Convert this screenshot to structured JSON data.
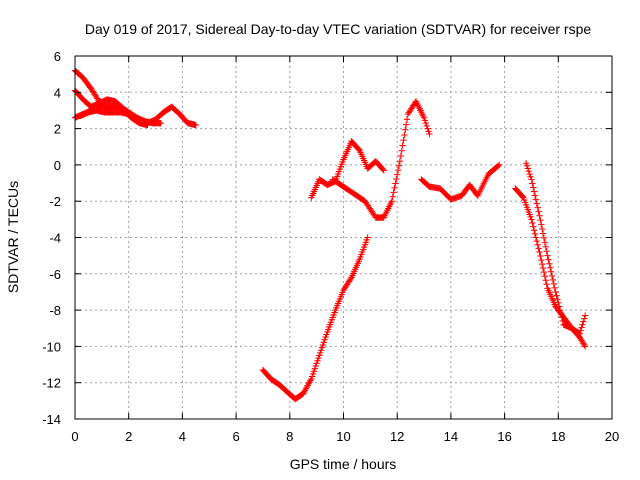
{
  "chart_data": {
    "type": "scatter",
    "title": "Day 019 of 2017, Sidereal Day-to-day VTEC variation (SDTVAR) for receiver rspe",
    "xlabel": "GPS time / hours",
    "ylabel": "SDTVAR / TECUs",
    "xlim": [
      0,
      20
    ],
    "ylim": [
      -14,
      6
    ],
    "xticks": [
      {
        "value": 0,
        "label": "0"
      },
      {
        "value": 2,
        "label": "2"
      },
      {
        "value": 4,
        "label": "4"
      },
      {
        "value": 6,
        "label": "6"
      },
      {
        "value": 8,
        "label": "8"
      },
      {
        "value": 10,
        "label": "10"
      },
      {
        "value": 12,
        "label": "12"
      },
      {
        "value": 14,
        "label": "14"
      },
      {
        "value": 16,
        "label": "16"
      },
      {
        "value": 18,
        "label": "18"
      },
      {
        "value": 20,
        "label": "20"
      }
    ],
    "yticks": [
      {
        "value": -14,
        "label": "-14"
      },
      {
        "value": -12,
        "label": "-12"
      },
      {
        "value": -10,
        "label": "-10"
      },
      {
        "value": -8,
        "label": "-8"
      },
      {
        "value": -6,
        "label": "-6"
      },
      {
        "value": -4,
        "label": "-4"
      },
      {
        "value": -2,
        "label": "-2"
      },
      {
        "value": 0,
        "label": "0"
      },
      {
        "value": 2,
        "label": "2"
      },
      {
        "value": 4,
        "label": "4"
      },
      {
        "value": 6,
        "label": "6"
      }
    ],
    "grid": true,
    "marker": "plus",
    "color": "#ff0000",
    "series": [
      {
        "x": [
          0.0,
          0.3,
          0.6,
          0.9,
          1.2,
          1.5,
          1.8,
          2.1,
          2.4,
          2.7,
          3.0,
          3.3,
          3.6,
          3.9,
          4.2,
          4.5
        ],
        "y": [
          2.6,
          2.8,
          3.0,
          3.2,
          3.3,
          3.2,
          3.0,
          2.8,
          2.5,
          2.3,
          2.5,
          2.9,
          3.2,
          2.8,
          2.3,
          2.2
        ]
      },
      {
        "x": [
          0.0,
          0.3,
          0.6,
          0.9,
          1.2,
          1.5,
          1.8,
          2.1,
          2.4,
          2.7
        ],
        "y": [
          5.2,
          4.8,
          4.2,
          3.5,
          3.1,
          3.2,
          3.0,
          2.6,
          2.3,
          2.2
        ]
      },
      {
        "x": [
          0.0,
          0.3,
          0.6,
          0.9,
          1.2,
          1.5,
          1.8,
          2.1,
          2.4,
          2.7
        ],
        "y": [
          4.1,
          3.6,
          3.2,
          3.4,
          3.6,
          3.5,
          3.1,
          2.8,
          2.4,
          2.2
        ]
      },
      {
        "x": [
          0.2,
          0.5,
          0.8,
          1.1,
          1.4,
          1.7,
          2.0,
          2.3,
          2.6,
          2.9,
          3.2
        ],
        "y": [
          2.7,
          2.9,
          3.0,
          2.9,
          2.9,
          2.9,
          2.8,
          2.6,
          2.4,
          2.3,
          2.3
        ]
      },
      {
        "x": [
          7.0,
          7.3,
          7.6,
          7.9,
          8.2,
          8.5,
          8.8,
          9.1,
          9.4,
          9.7,
          10.0,
          10.3,
          10.6,
          10.9
        ],
        "y": [
          -11.3,
          -11.8,
          -12.1,
          -12.5,
          -12.9,
          -12.6,
          -11.8,
          -10.5,
          -9.2,
          -8.0,
          -6.9,
          -6.2,
          -5.2,
          -4.0
        ]
      },
      {
        "x": [
          8.8,
          9.1,
          9.4,
          9.7,
          10.0,
          10.3,
          10.6,
          10.9,
          11.2,
          11.5
        ],
        "y": [
          -1.8,
          -0.8,
          -1.1,
          -0.9,
          0.3,
          1.3,
          0.8,
          -0.2,
          0.2,
          -0.3
        ]
      },
      {
        "x": [
          9.6,
          10.0,
          10.4,
          10.8,
          11.2,
          11.5,
          11.8,
          12.1,
          12.4,
          12.7,
          13.0,
          13.2
        ],
        "y": [
          -0.8,
          -1.2,
          -1.6,
          -2.0,
          -2.9,
          -2.9,
          -2.0,
          0.2,
          2.8,
          3.5,
          2.6,
          1.7
        ]
      },
      {
        "x": [
          12.9,
          13.2,
          13.6,
          14.0,
          14.4,
          14.7,
          15.0,
          15.4,
          15.8
        ],
        "y": [
          -0.8,
          -1.2,
          -1.3,
          -1.9,
          -1.7,
          -1.1,
          -1.7,
          -0.5,
          0.0
        ]
      },
      {
        "x": [
          16.8,
          17.0,
          17.3,
          17.6,
          17.9,
          18.2,
          18.5,
          18.8,
          19.0
        ],
        "y": [
          0.1,
          -0.8,
          -2.8,
          -5.0,
          -7.0,
          -8.8,
          -9.0,
          -9.5,
          -10.0
        ]
      },
      {
        "x": [
          16.4,
          16.7,
          17.0,
          17.3,
          17.6,
          17.9,
          18.2,
          18.5,
          18.8,
          19.0
        ],
        "y": [
          -1.3,
          -1.8,
          -3.0,
          -4.8,
          -6.8,
          -7.8,
          -8.4,
          -9.0,
          -9.3,
          -8.3
        ]
      }
    ]
  }
}
